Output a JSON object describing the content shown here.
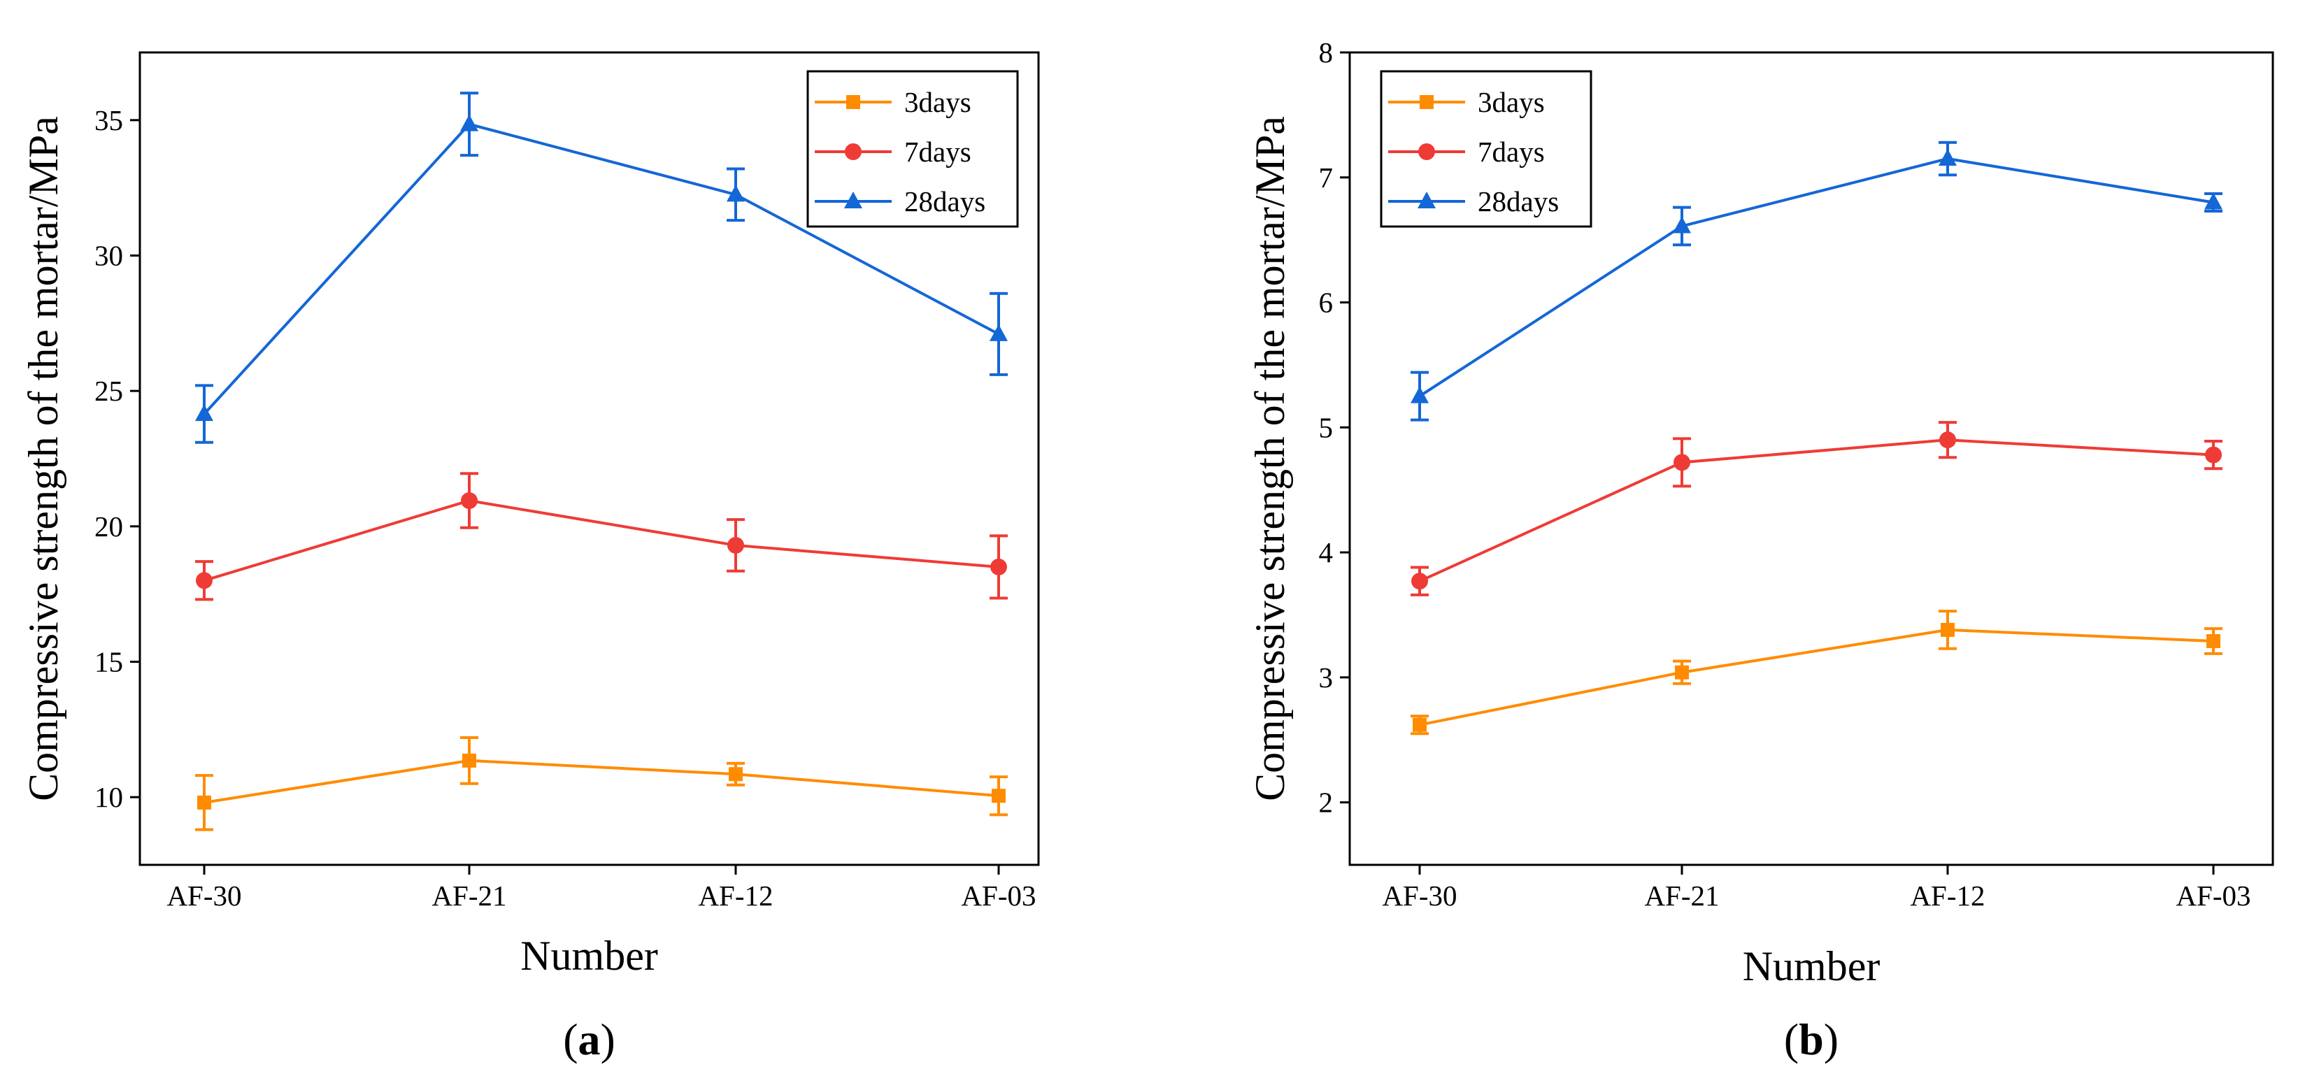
{
  "chart_data": [
    {
      "type": "line",
      "panel_label": "a",
      "title": "",
      "xlabel": "Number",
      "ylabel": "Compressive strength of the mortar/MPa",
      "categories": [
        "AF-30",
        "AF-21",
        "AF-12",
        "AF-03"
      ],
      "ylim": [
        7.5,
        37.5
      ],
      "yticks": [
        10,
        15,
        20,
        25,
        30,
        35
      ],
      "ytick_labels": [
        "10",
        "15",
        "20",
        "25",
        "30",
        "35"
      ],
      "grid": false,
      "legend_position": "top-right",
      "series": [
        {
          "name": "3days",
          "color": "#FF8C00",
          "marker": "square",
          "values": [
            9.8,
            11.35,
            10.85,
            10.05
          ],
          "errors": [
            1.0,
            0.85,
            0.4,
            0.7
          ]
        },
        {
          "name": "7days",
          "color": "#EF3B36",
          "marker": "circle",
          "values": [
            18.0,
            20.95,
            19.3,
            18.5
          ],
          "errors": [
            0.7,
            1.0,
            0.95,
            1.15
          ]
        },
        {
          "name": "28days",
          "color": "#1467D6",
          "marker": "triangle",
          "values": [
            24.15,
            34.85,
            32.25,
            27.1
          ],
          "errors": [
            1.05,
            1.15,
            0.95,
            1.5
          ]
        }
      ]
    },
    {
      "type": "line",
      "panel_label": "b",
      "title": "",
      "xlabel": "Number",
      "ylabel": "Compressive strength of the mortar/MPa",
      "categories": [
        "AF-30",
        "AF-21",
        "AF-12",
        "AF-03"
      ],
      "ylim": [
        1.5,
        8.0
      ],
      "yticks": [
        2,
        3,
        4,
        5,
        6,
        7,
        8
      ],
      "ytick_labels": [
        "2",
        "3",
        "4",
        "5",
        "6",
        "7",
        "8"
      ],
      "grid": false,
      "legend_position": "top-left",
      "series": [
        {
          "name": "3days",
          "color": "#FF8C00",
          "marker": "square",
          "values": [
            2.62,
            3.04,
            3.38,
            3.29
          ],
          "errors": [
            0.07,
            0.09,
            0.15,
            0.1
          ]
        },
        {
          "name": "7days",
          "color": "#EF3B36",
          "marker": "circle",
          "values": [
            3.77,
            4.72,
            4.9,
            4.78
          ],
          "errors": [
            0.11,
            0.19,
            0.14,
            0.11
          ]
        },
        {
          "name": "28days",
          "color": "#1467D6",
          "marker": "triangle",
          "values": [
            5.25,
            6.61,
            7.15,
            6.8
          ],
          "errors": [
            0.19,
            0.15,
            0.13,
            0.07
          ]
        }
      ]
    }
  ]
}
